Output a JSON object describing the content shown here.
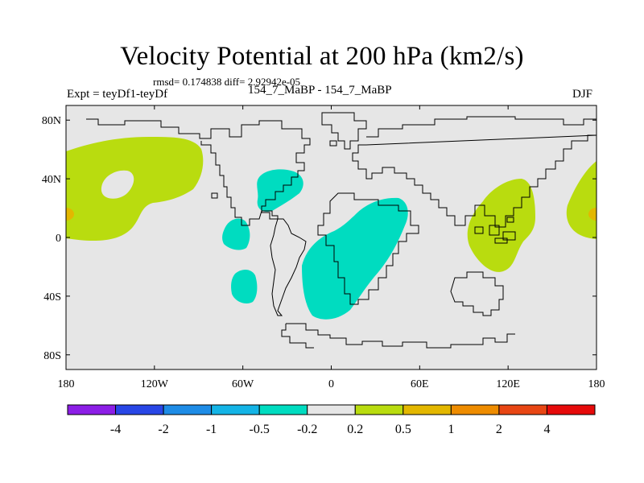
{
  "header": {
    "title": "Velocity Potential at 200 hPa (km2/s)",
    "stats": "rmsd= 0.174838 diff= 2.92942e-05",
    "experiment": "Expt = teyDf1-teyDf",
    "case": "154_7_MaBP - 154_7_MaBP",
    "season": "DJF"
  },
  "map": {
    "projection": "cylindrical-equidistant",
    "lon_range": [
      -180,
      180
    ],
    "lat_range": [
      -90,
      90
    ],
    "lon_tick_values": [
      -180,
      -120,
      -60,
      0,
      60,
      120,
      180
    ],
    "lon_tick_labels": [
      "180",
      "120W",
      "60W",
      "0",
      "60E",
      "120E",
      "180"
    ],
    "lat_tick_values": [
      80,
      40,
      0,
      -40,
      -80
    ],
    "lat_tick_labels": [
      "80N",
      "40N",
      "0",
      "40S",
      "80S"
    ],
    "background_color": "#e6e6e6",
    "regions": [
      {
        "name": "north-pacific-positive",
        "bin": "0.2 to 0.5",
        "color": "#b9dc0f",
        "center": [
          -150,
          30
        ],
        "note": "ring with hole near (-147, 35)"
      },
      {
        "name": "dateline-east-positive",
        "bin": "0.2 to 0.5",
        "color": "#b9dc0f",
        "center": [
          175,
          17
        ]
      },
      {
        "name": "dateline-west-positive",
        "bin": "0.2 to 0.5",
        "color": "#b9dc0f",
        "center": [
          -175,
          17
        ]
      },
      {
        "name": "maritime-continent-positive",
        "bin": "0.2 to 0.5",
        "color": "#b9dc0f",
        "center": [
          115,
          10
        ]
      },
      {
        "name": "dateline-max-west",
        "bin": "0.5 to 1",
        "color": "#e3b700",
        "center": [
          -178,
          15
        ]
      },
      {
        "name": "dateline-max-east",
        "bin": "0.5 to 1",
        "color": "#e3b700",
        "center": [
          178,
          15
        ]
      },
      {
        "name": "africa-negative",
        "bin": "-0.5 to -0.2",
        "color": "#00dcc0",
        "center": [
          20,
          -15
        ]
      },
      {
        "name": "north-atlantic-negative",
        "bin": "-0.5 to -0.2",
        "color": "#00dcc0",
        "center": [
          -35,
          30
        ]
      },
      {
        "name": "east-pacific-negative",
        "bin": "-0.5 to -0.2",
        "color": "#00dcc0",
        "center": [
          -73,
          5
        ]
      },
      {
        "name": "south-pacific-negative",
        "bin": "-0.5 to -0.2",
        "color": "#00dcc0",
        "center": [
          -73,
          -38
        ]
      }
    ]
  },
  "colorbar": {
    "colors": [
      "#8c1ee6",
      "#2846e6",
      "#1e8ce6",
      "#14b4e6",
      "#00dcc0",
      "#e6e6e6",
      "#b9dc0f",
      "#e3b700",
      "#ee8c00",
      "#e84614",
      "#e60a0a"
    ],
    "labels": [
      "-4",
      "-2",
      "-1",
      "-0.5",
      "-0.2",
      "0.2",
      "0.5",
      "1",
      "2",
      "4"
    ]
  }
}
